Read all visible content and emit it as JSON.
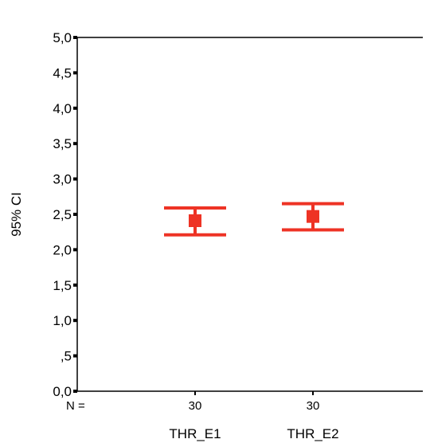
{
  "chart_data": {
    "type": "errorbar",
    "ylabel": "95% CI",
    "ylim": [
      0,
      5
    ],
    "yticks": [
      {
        "value": 0,
        "label": "0,0"
      },
      {
        "value": 0.5,
        "label": ",5"
      },
      {
        "value": 1,
        "label": "1,0"
      },
      {
        "value": 1.5,
        "label": "1,5"
      },
      {
        "value": 2,
        "label": "2,0"
      },
      {
        "value": 2.5,
        "label": "2,5"
      },
      {
        "value": 3,
        "label": "3,0"
      },
      {
        "value": 3.5,
        "label": "3,5"
      },
      {
        "value": 4,
        "label": "4,0"
      },
      {
        "value": 4.5,
        "label": "4,5"
      },
      {
        "value": 5,
        "label": "5,0"
      }
    ],
    "n_label": "N =",
    "categories": [
      "THR_E1",
      "THR_E2"
    ],
    "n": [
      "30",
      "30"
    ],
    "mean": [
      2.41,
      2.47
    ],
    "lower": [
      2.21,
      2.28
    ],
    "upper": [
      2.59,
      2.65
    ],
    "color": "#ee3325",
    "grid": false
  }
}
